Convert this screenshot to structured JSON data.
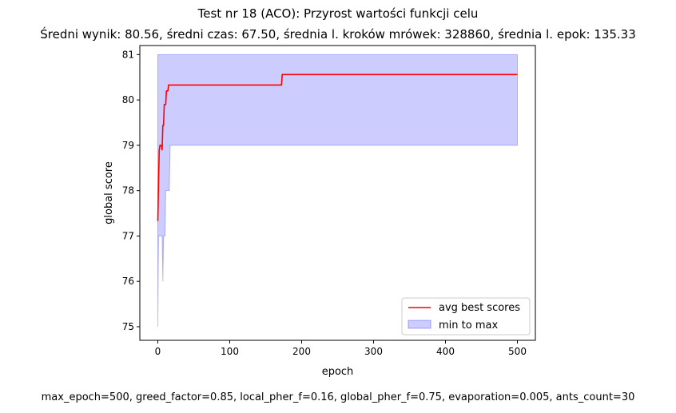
{
  "chart_data": {
    "type": "line",
    "title": "Test nr 18 (ACO): Przyrost wartości funkcji celu",
    "subtitle": "Średni wynik: 80.56, średni czas: 67.50, średnia l. kroków mrówek: 328860, średnia l. epok: 135.33",
    "xlabel": "epoch",
    "ylabel": "global score",
    "xlim": [
      -25,
      525
    ],
    "ylim": [
      74.7,
      81.2
    ],
    "xticks": [
      0,
      100,
      200,
      300,
      400,
      500
    ],
    "yticks": [
      75,
      76,
      77,
      78,
      79,
      80,
      81
    ],
    "grid": false,
    "legend_position": "lower-right",
    "series": [
      {
        "name": "avg best scores",
        "kind": "line",
        "color": "#ff0000",
        "x": [
          0,
          1,
          2,
          3,
          5,
          6,
          7,
          8,
          9,
          10,
          11,
          12,
          13,
          14,
          15,
          16,
          17,
          18,
          172,
          173,
          174,
          500
        ],
        "y": [
          77.33,
          78.2,
          78.9,
          79.0,
          79.0,
          78.9,
          79.44,
          79.44,
          79.9,
          79.9,
          79.9,
          80.2,
          80.2,
          80.2,
          80.33,
          80.33,
          80.33,
          80.33,
          80.33,
          80.56,
          80.56,
          80.56
        ]
      },
      {
        "name": "min to max",
        "kind": "band",
        "color": "#0000ff",
        "x": [
          0,
          1,
          3,
          6,
          7,
          8,
          9,
          10,
          11,
          12,
          13,
          14,
          15,
          16,
          17,
          18,
          500
        ],
        "y_min": [
          75,
          77,
          77,
          77,
          76,
          77,
          77,
          77,
          78,
          78,
          78,
          78,
          78,
          78,
          79,
          79,
          79
        ],
        "y_max": [
          81,
          81,
          81,
          81,
          81,
          81,
          81,
          81,
          81,
          81,
          81,
          81,
          81,
          81,
          81,
          81,
          81
        ]
      }
    ]
  },
  "footer": "max_epoch=500, greed_factor=0.85, local_pher_f=0.16, global_pher_f=0.75, evaporation=0.005, ants_count=30"
}
